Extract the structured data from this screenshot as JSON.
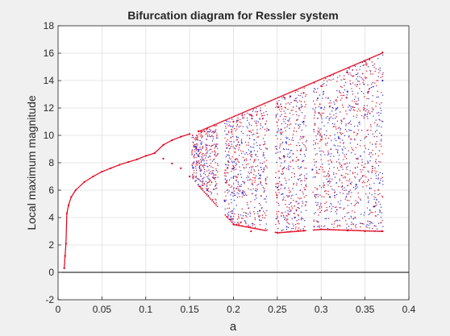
{
  "chart_data": {
    "type": "scatter",
    "title": "Bifurcation diagram for Ressler system",
    "xlabel": "a",
    "ylabel": "Local maximum magnitude",
    "xlim": [
      0,
      0.4
    ],
    "ylim": [
      -2,
      18
    ],
    "xticks": [
      0,
      0.05,
      0.1,
      0.15,
      0.2,
      0.25,
      0.3,
      0.35,
      0.4
    ],
    "yticks": [
      -2,
      0,
      2,
      4,
      6,
      8,
      10,
      12,
      14,
      16,
      18
    ],
    "x_tick_labels": [
      "0",
      "0.05",
      "0.1",
      "0.15",
      "0.2",
      "0.25",
      "0.3",
      "0.35",
      "0.4"
    ],
    "y_tick_labels": [
      "-2",
      "0",
      "2",
      "4",
      "6",
      "8",
      "10",
      "12",
      "14",
      "16",
      "18"
    ],
    "grid": true,
    "series": [
      {
        "color": "#e0001a",
        "points": [
          [
            0.007,
            0.3
          ],
          [
            0.008,
            1.2
          ],
          [
            0.009,
            2.1
          ],
          [
            0.01,
            4.3
          ],
          [
            0.012,
            4.9
          ],
          [
            0.015,
            5.5
          ],
          [
            0.02,
            6.0
          ],
          [
            0.03,
            6.6
          ],
          [
            0.04,
            7.0
          ],
          [
            0.05,
            7.35
          ],
          [
            0.06,
            7.6
          ],
          [
            0.07,
            7.85
          ],
          [
            0.08,
            8.05
          ],
          [
            0.09,
            8.25
          ],
          [
            0.1,
            8.5
          ],
          [
            0.11,
            8.7
          ],
          [
            0.12,
            9.3
          ],
          [
            0.13,
            9.65
          ],
          [
            0.14,
            9.9
          ],
          [
            0.15,
            10.1
          ],
          [
            0.12,
            8.3
          ],
          [
            0.13,
            7.95
          ],
          [
            0.14,
            7.6
          ],
          [
            0.15,
            7.0
          ],
          [
            0.16,
            10.3
          ],
          [
            0.17,
            10.5
          ],
          [
            0.2,
            11.0
          ],
          [
            0.22,
            11.5
          ],
          [
            0.25,
            12.3
          ],
          [
            0.28,
            13.1
          ],
          [
            0.3,
            13.6
          ],
          [
            0.33,
            14.6
          ],
          [
            0.35,
            15.4
          ],
          [
            0.37,
            16.05
          ],
          [
            0.2,
            3.5
          ],
          [
            0.22,
            3.0
          ],
          [
            0.25,
            2.9
          ],
          [
            0.28,
            3.05
          ],
          [
            0.3,
            3.15
          ],
          [
            0.33,
            3.05
          ],
          [
            0.35,
            3.0
          ],
          [
            0.37,
            3.0
          ]
        ]
      },
      {
        "color": "#2a2ad6",
        "points": [
          [
            0.16,
            8.5
          ],
          [
            0.17,
            6.0
          ],
          [
            0.18,
            9.2
          ],
          [
            0.19,
            5.2
          ],
          [
            0.2,
            7.6
          ],
          [
            0.21,
            5.8
          ],
          [
            0.22,
            8.8
          ],
          [
            0.23,
            4.5
          ],
          [
            0.24,
            10.4
          ],
          [
            0.25,
            6.2
          ],
          [
            0.26,
            9.5
          ],
          [
            0.27,
            4.0
          ],
          [
            0.28,
            11.0
          ],
          [
            0.29,
            7.5
          ],
          [
            0.3,
            12.0
          ],
          [
            0.31,
            5.5
          ],
          [
            0.32,
            9.8
          ],
          [
            0.33,
            13.2
          ],
          [
            0.34,
            6.4
          ],
          [
            0.35,
            11.5
          ],
          [
            0.36,
            4.8
          ],
          [
            0.37,
            14.0
          ]
        ]
      },
      {
        "color": "#000000",
        "points": [
          [
            0,
            0
          ],
          [
            0.4,
            0
          ]
        ]
      }
    ]
  }
}
